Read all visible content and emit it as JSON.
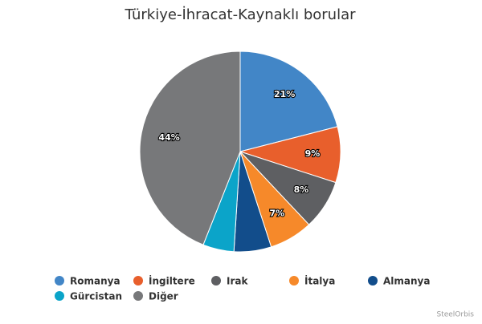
{
  "chart_data": {
    "type": "pie",
    "title": "Türkiye-İhracat-Kaynaklı borular",
    "categories": [
      "Romanya",
      "İngiltere",
      "Irak",
      "İtalya",
      "Almanya",
      "Gürcistan",
      "Diğer"
    ],
    "values": [
      21,
      9,
      8,
      7,
      6,
      5,
      44
    ],
    "value_labels": [
      "21%",
      "9%",
      "8%",
      "7%",
      null,
      null,
      "44%"
    ],
    "colors": [
      "#4286c7",
      "#e85f2c",
      "#5e5f62",
      "#f6892a",
      "#124d8b",
      "#0ba4c9",
      "#77787a"
    ],
    "legend": "bottom",
    "credit": "SteelOrbis"
  }
}
